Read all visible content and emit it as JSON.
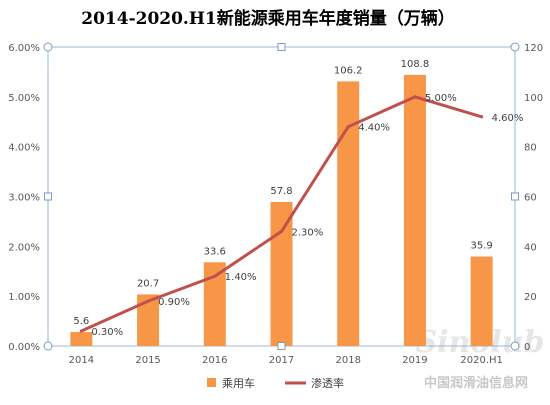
{
  "chart_data": {
    "type": "bar",
    "title": "2014-2020.H1新能源乘用车年度销量（万辆）",
    "categories": [
      "2014",
      "2015",
      "2016",
      "2017",
      "2018",
      "2019",
      "2020.H1"
    ],
    "series": [
      {
        "name": "乘用车",
        "type": "bar",
        "axis": "right",
        "values": [
          5.6,
          20.7,
          33.6,
          57.8,
          106.2,
          108.8,
          35.9
        ],
        "labels": [
          "5.6",
          "20.7",
          "33.6",
          "57.8",
          "106.2",
          "108.8",
          "35.9"
        ]
      },
      {
        "name": "渗透率",
        "type": "line",
        "axis": "left",
        "values": [
          0.003,
          0.009,
          0.014,
          0.023,
          0.044,
          0.05,
          0.046
        ],
        "labels": [
          "0.30%",
          "0.90%",
          "1.40%",
          "2.30%",
          "4.40%",
          "5.00%",
          "4.60%"
        ]
      }
    ],
    "y_left": {
      "range": [
        0,
        0.06
      ],
      "ticks": [
        "0.00%",
        "1.00%",
        "2.00%",
        "3.00%",
        "4.00%",
        "5.00%",
        "6.00%"
      ]
    },
    "y_right": {
      "range": [
        0,
        120
      ],
      "ticks": [
        "0",
        "20",
        "40",
        "60",
        "80",
        "100",
        "120"
      ]
    },
    "legend": "bottom",
    "grid": false,
    "colors": {
      "bar": "#f79646",
      "line": "#c0504d",
      "title": "#f79646"
    }
  },
  "watermark": {
    "line1": "Sinolub",
    "line2": "中国润滑油信息网"
  }
}
